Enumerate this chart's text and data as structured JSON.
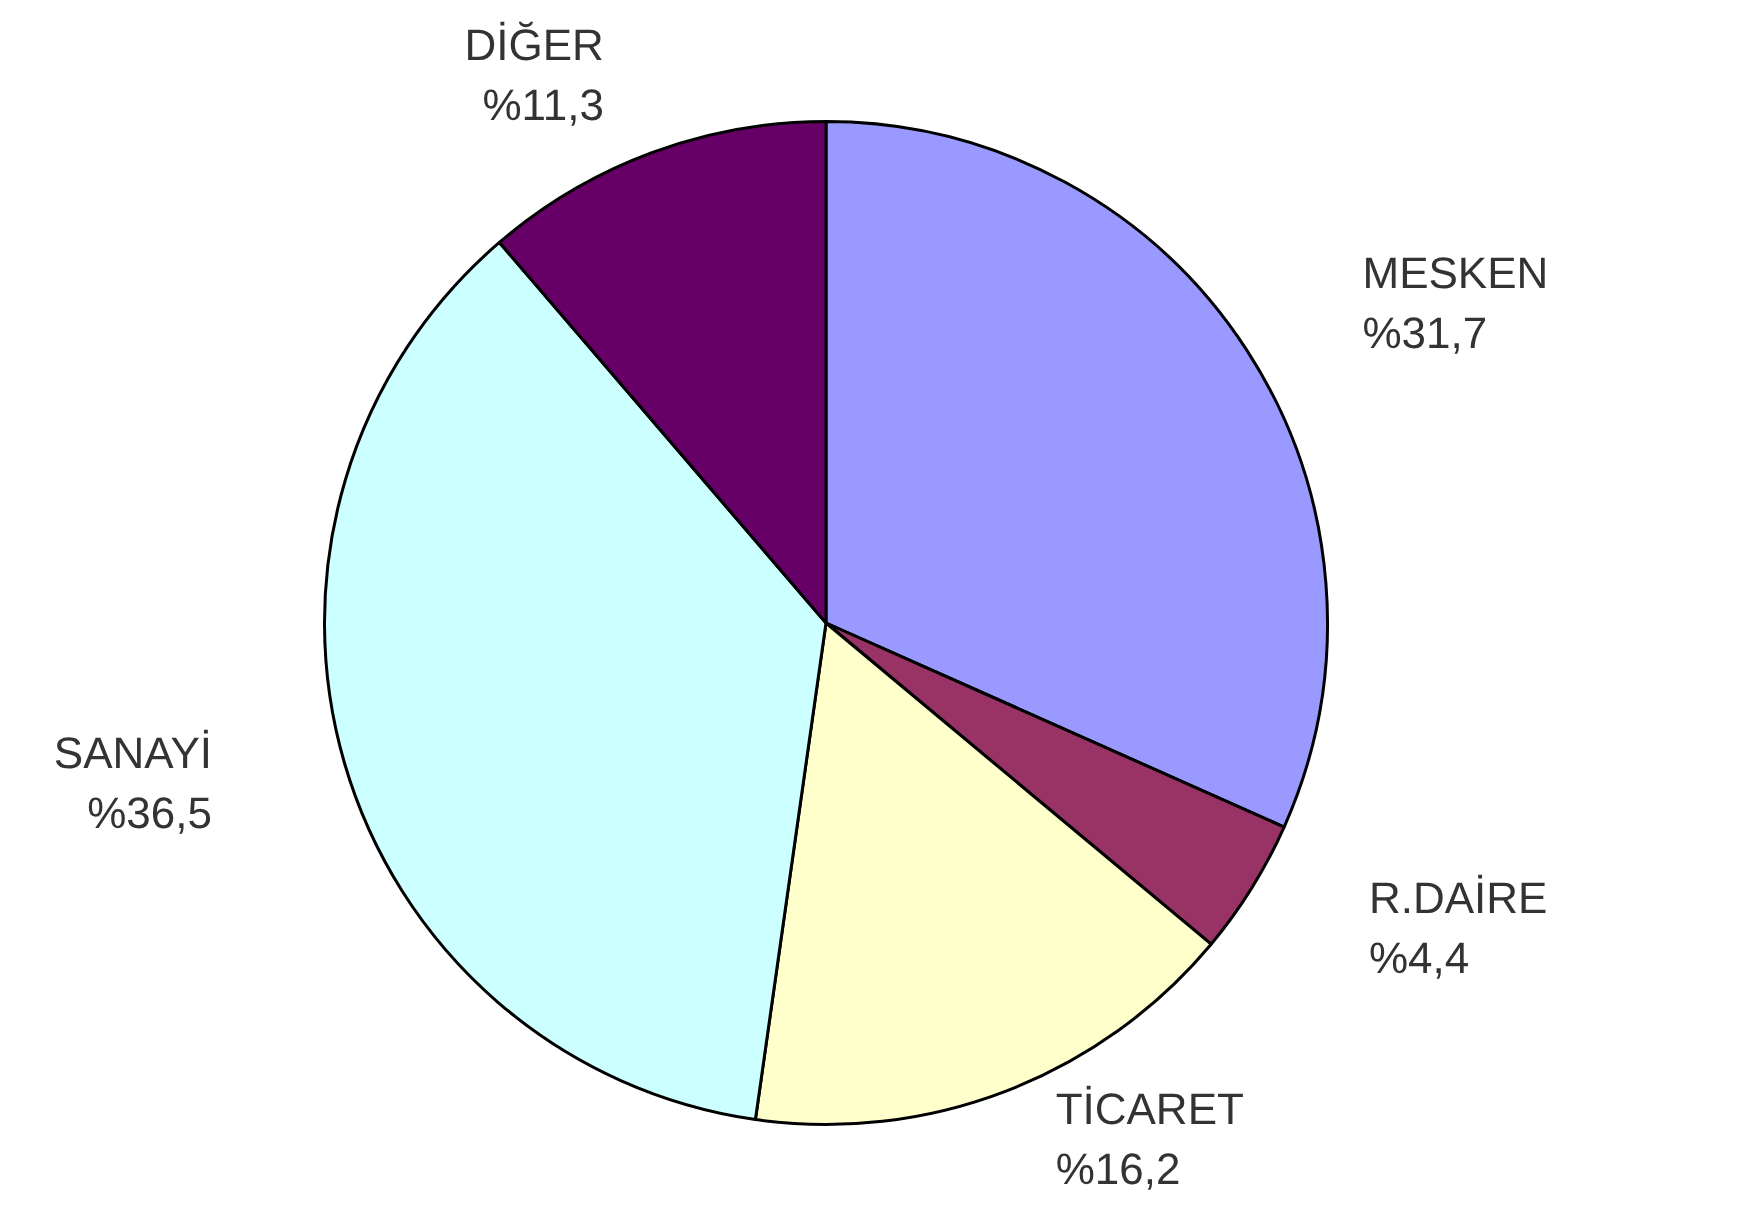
{
  "chart_data": {
    "type": "pie",
    "categories": [
      "MESKEN",
      "R.DAİRE",
      "TİCARET",
      "SANAYİ",
      "DİĞER"
    ],
    "values": [
      31.7,
      4.4,
      16.2,
      36.5,
      11.3
    ],
    "value_labels": [
      "%31,7",
      "%4,4",
      "%16,2",
      "%36,5",
      "%11,3"
    ],
    "colors": [
      "#9999ff",
      "#993366",
      "#ffffcc",
      "#ccffff",
      "#660066"
    ],
    "legend": false
  }
}
